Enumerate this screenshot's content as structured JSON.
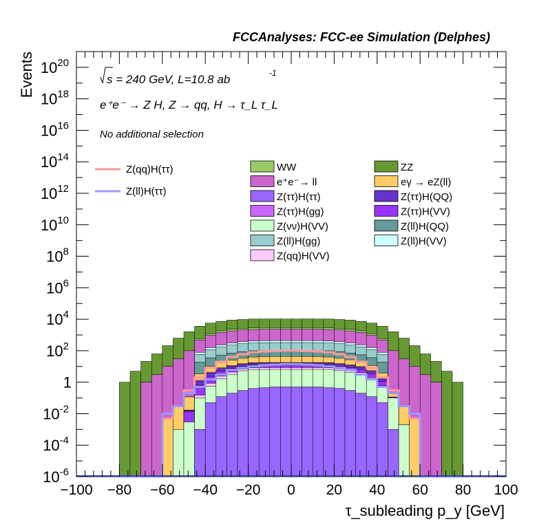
{
  "header": {
    "title": "FCCAnalyses: FCC-ee Simulation (Delphes)"
  },
  "annotations": {
    "sqrt_s": "s = 240 GeV, L=10.8 ab",
    "lumi_exp": "-1",
    "process": "e⁺e⁻ → Z H, Z → qq, H → τ_L τ_L",
    "selection": "No additional selection"
  },
  "colors": {
    "WW": "#99cc66",
    "ZZ": "#669933",
    "ee_ll": "#cc66cc",
    "egamma_eZll": "#ffcc66",
    "Ztautau_Htautau": "#9966ff",
    "Ztautau_HQQ": "#6633cc",
    "Ztautau_Hgg": "#cc66ff",
    "Ztautau_HVV": "#9933ff",
    "Znunu_HVV": "#ccffcc",
    "Zll_HQQ": "#669999",
    "Zll_Hgg": "#99cccc",
    "Zll_HVV": "#ccffff",
    "Zqq_HVV": "#ffccff",
    "sig_qq": "#ff9999",
    "sig_ll": "#9999ff"
  },
  "chart_data": {
    "type": "bar",
    "stacked": true,
    "log_y": true,
    "xlabel": "τ_subleading p_y [GeV]",
    "ylabel": "Events",
    "xlim": [
      -100,
      100
    ],
    "ylim": [
      1e-06,
      1e+21
    ],
    "x_ticks": [
      "−100",
      "−80",
      "−60",
      "−40",
      "−20",
      "0",
      "20",
      "40",
      "60",
      "80",
      "100"
    ],
    "y_ticks": [
      {
        "base": "10",
        "exp": "20",
        "value": 1e+20
      },
      {
        "base": "10",
        "exp": "18",
        "value": 1e+18
      },
      {
        "base": "10",
        "exp": "16",
        "value": 1e+16
      },
      {
        "base": "10",
        "exp": "14",
        "value": 100000000000000.0
      },
      {
        "base": "10",
        "exp": "12",
        "value": 1000000000000.0
      },
      {
        "base": "10",
        "exp": "10",
        "value": 10000000000.0
      },
      {
        "base": "10",
        "exp": "8",
        "value": 100000000.0
      },
      {
        "base": "10",
        "exp": "6",
        "value": 1000000.0
      },
      {
        "base": "10",
        "exp": "4",
        "value": 10000.0
      },
      {
        "base": "10",
        "exp": "2",
        "value": 100
      },
      {
        "base": "1",
        "exp": "",
        "value": 1
      },
      {
        "base": "10",
        "exp": "-2",
        "value": 0.01
      },
      {
        "base": "10",
        "exp": "-4",
        "value": 0.0001
      },
      {
        "base": "10",
        "exp": "-6",
        "value": 1e-06
      }
    ],
    "bin_edges": [
      -80,
      -75,
      -70,
      -65,
      -60,
      -55,
      -50,
      -45,
      -40,
      -35,
      -30,
      -25,
      -20,
      -15,
      -10,
      -5,
      0,
      5,
      10,
      15,
      20,
      25,
      30,
      35,
      40,
      45,
      50,
      55,
      60,
      65,
      70,
      75,
      80
    ],
    "backgrounds": [
      {
        "key": "Ztautau_Htautau",
        "name": "Z(ττ)H(ττ)",
        "values": [
          0,
          0,
          0,
          0,
          0,
          0,
          0,
          0.001,
          0.05,
          0.12,
          0.2,
          0.3,
          0.4,
          0.45,
          0.5,
          0.5,
          0.5,
          0.5,
          0.5,
          0.45,
          0.4,
          0.3,
          0.2,
          0.12,
          0.05,
          0.001,
          0,
          0,
          0,
          0,
          0,
          0
        ]
      },
      {
        "key": "Znunu_HVV",
        "name": "Z(νν)H(VV)",
        "values": [
          0,
          0,
          0,
          0,
          0,
          0.001,
          0.003,
          0.1,
          0.5,
          1.5,
          3,
          5,
          6,
          6,
          6,
          6,
          6,
          6,
          6,
          6,
          5,
          4,
          3,
          1.5,
          0.5,
          0.1,
          0.002,
          0,
          0,
          0,
          0,
          0
        ]
      },
      {
        "key": "Zqq_HVV",
        "name": "Z(qq)H(VV)",
        "values": [
          0,
          0,
          0,
          0,
          0,
          0,
          0,
          0.05,
          0.3,
          0.8,
          1.2,
          1.5,
          1.8,
          2,
          2,
          2,
          2,
          2,
          2,
          1.8,
          1.5,
          1.2,
          0.8,
          0.3,
          0.05,
          0,
          0,
          0,
          0,
          0,
          0,
          0
        ]
      },
      {
        "key": "Ztautau_HVV",
        "name": "Z(ττ)H(VV)",
        "values": [
          0,
          0,
          0,
          0,
          0,
          0,
          0.01,
          0.5,
          1.5,
          2.5,
          3,
          3.5,
          4,
          4,
          4,
          4,
          4,
          4,
          4,
          4,
          3.5,
          3,
          2.5,
          1.5,
          0.5,
          0.01,
          0,
          0,
          0,
          0,
          0,
          0
        ]
      },
      {
        "key": "Ztautau_HQQ",
        "name": "Z(ττ)H(QQ)",
        "values": [
          0,
          0,
          0,
          0,
          0,
          0,
          0.003,
          0.5,
          1.5,
          2.5,
          3,
          3.5,
          4,
          4,
          4,
          4,
          4,
          4,
          4,
          4,
          3.5,
          3,
          2.5,
          1.5,
          0.5,
          0.003,
          0,
          0,
          0,
          0,
          0,
          0
        ]
      },
      {
        "key": "Ztautau_Hgg",
        "name": "Z(ττ)H(gg)",
        "values": [
          0,
          0,
          0,
          0,
          0,
          0,
          0.001,
          0.2,
          0.5,
          0.8,
          1,
          1.2,
          1.3,
          1.3,
          1.3,
          1.3,
          1.3,
          1.3,
          1.3,
          1.3,
          1.2,
          1,
          0.8,
          0.5,
          0.2,
          0.001,
          0,
          0,
          0,
          0,
          0,
          0
        ]
      },
      {
        "key": "egamma_eZll",
        "name": "eγ → eZ(ll)",
        "values": [
          0,
          0,
          0,
          0,
          0.005,
          0.03,
          0.1,
          2,
          6,
          10,
          14,
          18,
          22,
          24,
          25,
          25,
          25,
          25,
          24,
          22,
          18,
          14,
          10,
          6,
          2,
          0.1,
          0.03,
          0.005,
          0,
          0,
          0,
          0
        ]
      },
      {
        "key": "Zll_HQQ",
        "name": "Z(ll)H(QQ)",
        "values": [
          0,
          0,
          0,
          0,
          0,
          0,
          0,
          15,
          25,
          35,
          45,
          55,
          60,
          60,
          60,
          60,
          60,
          60,
          60,
          60,
          55,
          45,
          35,
          25,
          15,
          0,
          0,
          0,
          0,
          0,
          0,
          0
        ]
      },
      {
        "key": "Zll_Hgg",
        "name": "Z(ll)H(gg)",
        "values": [
          0,
          0,
          0,
          0,
          0,
          0,
          0,
          40,
          80,
          120,
          160,
          190,
          210,
          220,
          225,
          225,
          225,
          225,
          220,
          210,
          190,
          160,
          120,
          80,
          40,
          0,
          0,
          0,
          0,
          0,
          0,
          0
        ]
      },
      {
        "key": "Zll_HVV",
        "name": "Z(ll)H(VV)",
        "values": [
          0,
          0,
          0,
          0,
          0,
          0,
          0,
          20,
          40,
          60,
          80,
          95,
          105,
          110,
          115,
          115,
          115,
          115,
          110,
          105,
          95,
          80,
          60,
          40,
          20,
          0,
          0,
          0,
          0,
          0,
          0,
          0
        ]
      },
      {
        "key": "ee_ll",
        "name": "e⁺e⁻→ ll",
        "values": [
          0,
          0,
          1,
          3,
          10,
          30,
          100,
          400,
          800,
          1200,
          1500,
          1700,
          1800,
          1900,
          1900,
          1900,
          1900,
          1900,
          1900,
          1800,
          1700,
          1500,
          1200,
          800,
          400,
          100,
          30,
          10,
          3,
          1,
          0,
          0
        ]
      },
      {
        "key": "WW",
        "name": "WW",
        "values": [
          0,
          0,
          0,
          0,
          0,
          0,
          0,
          100,
          250,
          400,
          500,
          550,
          600,
          600,
          600,
          600,
          600,
          600,
          600,
          600,
          550,
          500,
          400,
          250,
          100,
          0,
          0,
          0,
          0,
          0,
          0,
          0
        ]
      },
      {
        "key": "ZZ",
        "name": "ZZ",
        "values": [
          1,
          5,
          20,
          60,
          200,
          600,
          1500,
          3000,
          4500,
          5500,
          6500,
          7000,
          7500,
          7500,
          7500,
          7500,
          7500,
          7500,
          7500,
          7500,
          7000,
          6500,
          5500,
          4500,
          3000,
          1500,
          600,
          200,
          60,
          20,
          5,
          1
        ]
      }
    ],
    "signals": [
      {
        "key": "sig_qq",
        "name": "Z(qq)H(ττ)",
        "values": [
          0,
          0,
          0,
          0,
          0.005,
          0.03,
          0.3,
          2,
          8,
          20,
          40,
          60,
          80,
          90,
          95,
          100,
          100,
          95,
          90,
          80,
          60,
          40,
          20,
          8,
          2,
          0.3,
          0.03,
          0.005,
          0,
          0,
          0,
          0
        ]
      },
      {
        "key": "sig_ll",
        "name": "Z(ll)H(ττ)",
        "values": [
          0,
          0,
          0,
          0,
          0.01,
          0.03,
          0.2,
          0.5,
          1.5,
          3,
          6,
          8,
          10,
          12,
          13,
          14,
          14,
          13,
          12,
          10,
          8,
          6,
          3,
          1.5,
          0.5,
          0.2,
          0.03,
          0.01,
          0,
          0,
          0,
          0
        ]
      }
    ],
    "legend": {
      "signal_entries": [
        "Z(qq)H(ττ)",
        "Z(ll)H(ττ)"
      ],
      "background_entries": [
        [
          "WW",
          "ZZ"
        ],
        [
          "e⁺e⁻→ ll",
          "eγ → eZ(ll)"
        ],
        [
          "Z(ττ)H(ττ)",
          "Z(ττ)H(QQ)"
        ],
        [
          "Z(ττ)H(gg)",
          "Z(ττ)H(VV)"
        ],
        [
          "Z(νν)H(VV)",
          "Z(ll)H(QQ)"
        ],
        [
          "Z(ll)H(gg)",
          "Z(ll)H(VV)"
        ],
        [
          "Z(qq)H(VV)",
          ""
        ]
      ],
      "placement": "top-right"
    }
  }
}
